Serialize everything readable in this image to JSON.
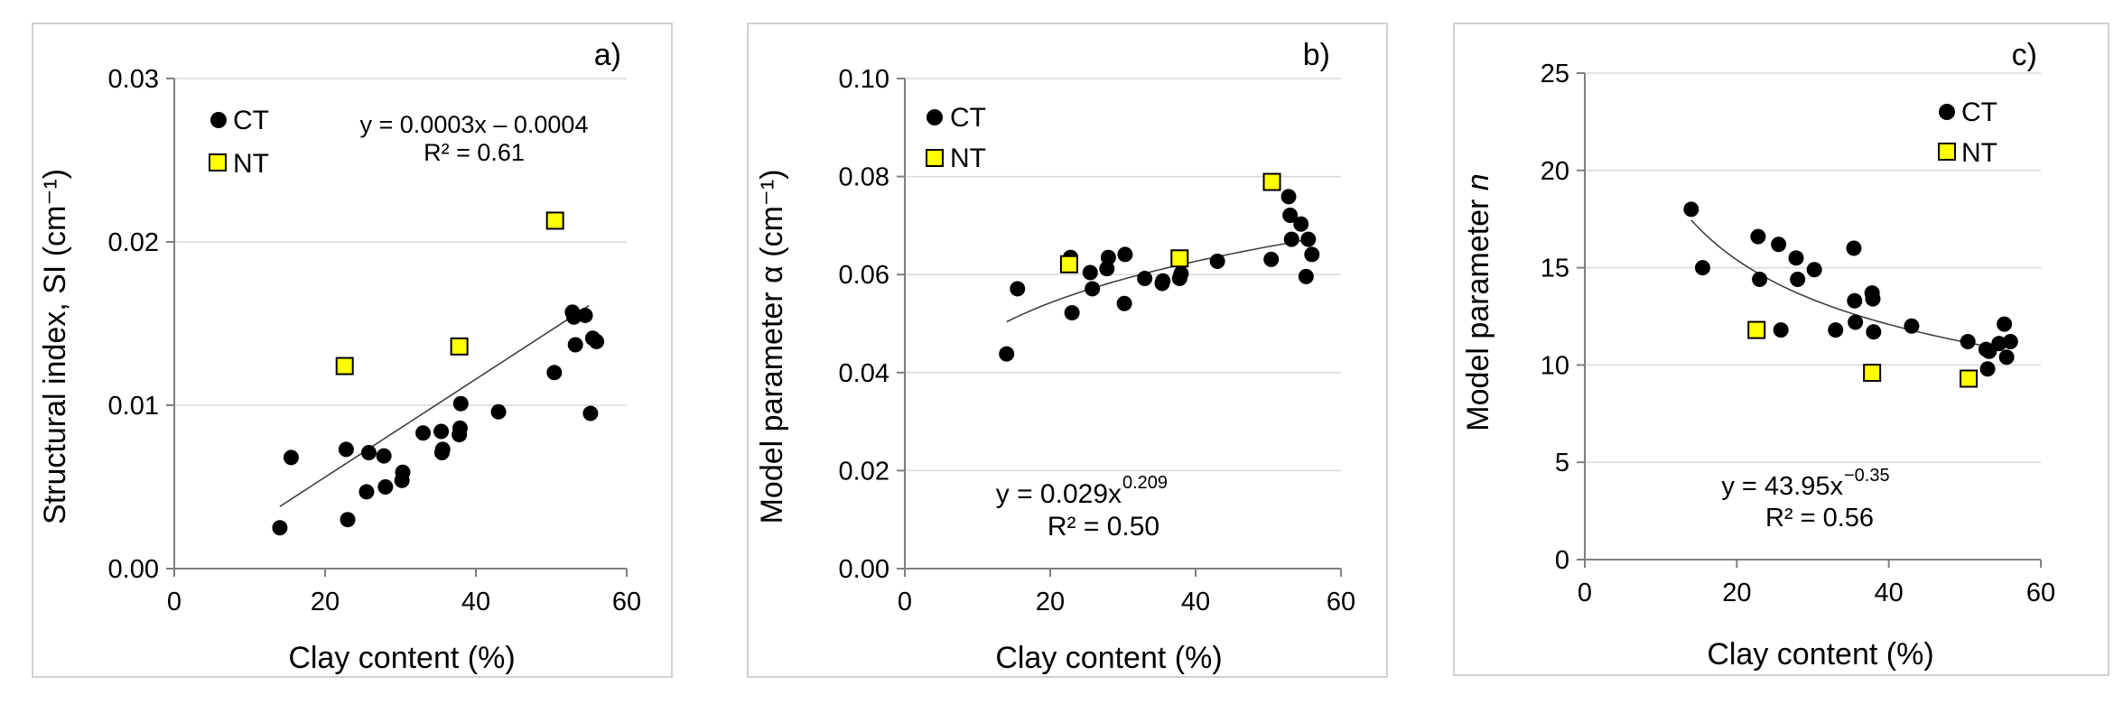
{
  "chart_data": [
    {
      "type": "scatter",
      "panel_label": "a)",
      "xlabel": "Clay content (%)",
      "ylabel": "Structural index, SI (cm⁻¹)",
      "xlim": [
        0,
        60
      ],
      "ylim": [
        0,
        0.03
      ],
      "xticks": [
        0,
        20,
        40,
        60
      ],
      "xtick_labels": [
        "0",
        "20",
        "40",
        "60"
      ],
      "yticks": [
        0,
        0.01,
        0.02,
        0.03
      ],
      "ytick_labels": [
        "0.00",
        "0.01",
        "0.02",
        "0.03"
      ],
      "legend": [
        {
          "name": "CT",
          "marker": "circle",
          "color": "#000000"
        },
        {
          "name": "NT",
          "marker": "square",
          "color": "#ffff00"
        }
      ],
      "legend_position": "top-left",
      "equation": [
        "y = 0.0003x – 0.0004",
        "R² = 0.61"
      ],
      "trendline": {
        "type": "linear",
        "a": 0.0003,
        "b": -0.0004,
        "x_range": [
          14,
          55
        ]
      },
      "series": [
        {
          "name": "CT",
          "points": [
            [
              14,
              0.0025
            ],
            [
              15.5,
              0.0068
            ],
            [
              22.8,
              0.0073
            ],
            [
              23,
              0.003
            ],
            [
              25.5,
              0.0047
            ],
            [
              25.8,
              0.0071
            ],
            [
              27.8,
              0.0069
            ],
            [
              28,
              0.005
            ],
            [
              30.2,
              0.0054
            ],
            [
              30.3,
              0.0059
            ],
            [
              33,
              0.0083
            ],
            [
              35.4,
              0.0084
            ],
            [
              35.5,
              0.0071
            ],
            [
              35.6,
              0.0073
            ],
            [
              37.8,
              0.0082
            ],
            [
              37.9,
              0.0086
            ],
            [
              38,
              0.0101
            ],
            [
              43,
              0.0096
            ],
            [
              50.4,
              0.012
            ],
            [
              52.8,
              0.0157
            ],
            [
              53,
              0.0154
            ],
            [
              53.2,
              0.0137
            ],
            [
              54.5,
              0.0155
            ],
            [
              55.2,
              0.0095
            ],
            [
              55.5,
              0.0141
            ],
            [
              56,
              0.0139
            ]
          ]
        },
        {
          "name": "NT",
          "points": [
            [
              22.6,
              0.0124
            ],
            [
              37.8,
              0.0136
            ],
            [
              50.5,
              0.0213
            ]
          ]
        }
      ]
    },
    {
      "type": "scatter",
      "panel_label": "b)",
      "xlabel": "Clay content (%)",
      "ylabel": "Model parameter α (cm⁻¹)",
      "xlim": [
        0,
        60
      ],
      "ylim": [
        0,
        0.1
      ],
      "xticks": [
        0,
        20,
        40,
        60
      ],
      "xtick_labels": [
        "0",
        "20",
        "40",
        "60"
      ],
      "yticks": [
        0,
        0.02,
        0.04,
        0.06,
        0.08,
        0.1
      ],
      "ytick_labels": [
        "0.00",
        "0.02",
        "0.04",
        "0.06",
        "0.08",
        "0.10"
      ],
      "legend": [
        {
          "name": "CT",
          "marker": "circle",
          "color": "#000000"
        },
        {
          "name": "NT",
          "marker": "square",
          "color": "#ffff00"
        }
      ],
      "legend_position": "top-left",
      "equation": [
        "y = 0.029x",
        "0.209",
        "R² = 0.50"
      ],
      "trendline": {
        "type": "power",
        "a": 0.029,
        "b": 0.209,
        "x_range": [
          14,
          55
        ]
      },
      "series": [
        {
          "name": "CT",
          "points": [
            [
              14,
              0.0438
            ],
            [
              15.5,
              0.0571
            ],
            [
              22.8,
              0.0635
            ],
            [
              23,
              0.0522
            ],
            [
              25.5,
              0.0604
            ],
            [
              25.8,
              0.0571
            ],
            [
              27.8,
              0.0612
            ],
            [
              28,
              0.0635
            ],
            [
              30.2,
              0.0541
            ],
            [
              30.3,
              0.0641
            ],
            [
              33,
              0.0592
            ],
            [
              35.4,
              0.0582
            ],
            [
              35.5,
              0.0587
            ],
            [
              37.8,
              0.0592
            ],
            [
              38,
              0.0602
            ],
            [
              43,
              0.0627
            ],
            [
              50.4,
              0.0631
            ],
            [
              52.8,
              0.0759
            ],
            [
              53,
              0.0721
            ],
            [
              53.2,
              0.0672
            ],
            [
              54.5,
              0.0703
            ],
            [
              55.2,
              0.0596
            ],
            [
              55.5,
              0.0672
            ],
            [
              56,
              0.0641
            ]
          ]
        },
        {
          "name": "NT",
          "points": [
            [
              22.6,
              0.0621
            ],
            [
              37.8,
              0.0633
            ],
            [
              50.5,
              0.0789
            ]
          ]
        }
      ]
    },
    {
      "type": "scatter",
      "panel_label": "c)",
      "xlabel": "Clay content (%)",
      "ylabel": "Model parameter n",
      "xlim": [
        0,
        60
      ],
      "ylim": [
        0,
        25
      ],
      "xticks": [
        0,
        20,
        40,
        60
      ],
      "xtick_labels": [
        "0",
        "20",
        "40",
        "60"
      ],
      "yticks": [
        0,
        5,
        10,
        15,
        20,
        25
      ],
      "ytick_labels": [
        "0",
        "5",
        "10",
        "15",
        "20",
        "25"
      ],
      "legend": [
        {
          "name": "CT",
          "marker": "circle",
          "color": "#000000"
        },
        {
          "name": "NT",
          "marker": "square",
          "color": "#ffff00"
        }
      ],
      "legend_position": "top-right",
      "equation": [
        "y = 43.95x",
        "−0.35",
        "R² = 0.56"
      ],
      "trendline": {
        "type": "power",
        "a": 43.95,
        "b": -0.35,
        "x_range": [
          14,
          55
        ]
      },
      "series": [
        {
          "name": "CT",
          "points": [
            [
              14,
              18
            ],
            [
              15.5,
              15
            ],
            [
              22.8,
              16.6
            ],
            [
              23,
              14.4
            ],
            [
              25.5,
              16.2
            ],
            [
              25.8,
              11.8
            ],
            [
              27.8,
              15.5
            ],
            [
              28,
              14.4
            ],
            [
              30.2,
              14.9
            ],
            [
              33,
              11.8
            ],
            [
              35.4,
              16
            ],
            [
              35.5,
              13.3
            ],
            [
              35.6,
              12.2
            ],
            [
              37.8,
              13.7
            ],
            [
              37.9,
              13.4
            ],
            [
              38,
              11.7
            ],
            [
              43,
              12
            ],
            [
              50.4,
              11.2
            ],
            [
              52.8,
              10.8
            ],
            [
              53,
              9.8
            ],
            [
              53.2,
              10.7
            ],
            [
              54.5,
              11.1
            ],
            [
              55.2,
              12.1
            ],
            [
              55.5,
              10.4
            ],
            [
              56,
              11.2
            ]
          ]
        },
        {
          "name": "NT",
          "points": [
            [
              22.6,
              11.8
            ],
            [
              37.8,
              9.6
            ],
            [
              50.5,
              9.3
            ]
          ]
        }
      ]
    }
  ]
}
